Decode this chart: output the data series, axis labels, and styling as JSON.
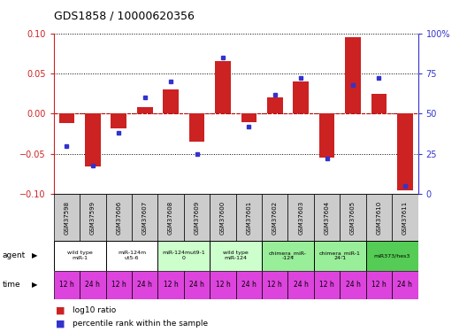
{
  "title": "GDS1858 / 10000620356",
  "samples": [
    "GSM37598",
    "GSM37599",
    "GSM37606",
    "GSM37607",
    "GSM37608",
    "GSM37609",
    "GSM37600",
    "GSM37601",
    "GSM37602",
    "GSM37603",
    "GSM37604",
    "GSM37605",
    "GSM37610",
    "GSM37611"
  ],
  "log10_ratio": [
    -0.012,
    -0.065,
    -0.018,
    0.008,
    0.03,
    -0.035,
    0.065,
    -0.01,
    0.02,
    0.04,
    -0.055,
    0.095,
    0.025,
    -0.095
  ],
  "percentile_rank": [
    30,
    18,
    38,
    60,
    70,
    25,
    85,
    42,
    62,
    72,
    22,
    68,
    72,
    5
  ],
  "ylim_left": [
    -0.1,
    0.1
  ],
  "ylim_right": [
    0,
    100
  ],
  "yticks_left": [
    -0.1,
    -0.05,
    0.0,
    0.05,
    0.1
  ],
  "yticks_right": [
    0,
    25,
    50,
    75,
    100
  ],
  "ytick_labels_right": [
    "0",
    "25",
    "50",
    "75",
    "100%"
  ],
  "bar_color": "#cc2222",
  "dot_color": "#3333cc",
  "agent_groups": [
    {
      "label": "wild type\nmiR-1",
      "start": 0,
      "end": 2,
      "color": "#ffffff"
    },
    {
      "label": "miR-124m\nut5-6",
      "start": 2,
      "end": 4,
      "color": "#ffffff"
    },
    {
      "label": "miR-124mut9-1\n0",
      "start": 4,
      "end": 6,
      "color": "#ccffcc"
    },
    {
      "label": "wild type\nmiR-124",
      "start": 6,
      "end": 8,
      "color": "#ccffcc"
    },
    {
      "label": "chimera_miR-\n-124",
      "start": 8,
      "end": 10,
      "color": "#99ee99"
    },
    {
      "label": "chimera_miR-1\n24-1",
      "start": 10,
      "end": 12,
      "color": "#99ee99"
    },
    {
      "label": "miR373/hes3",
      "start": 12,
      "end": 14,
      "color": "#55cc55"
    }
  ],
  "time_labels": [
    "12 h",
    "24 h",
    "12 h",
    "24 h",
    "12 h",
    "24 h",
    "12 h",
    "24 h",
    "12 h",
    "24 h",
    "12 h",
    "24 h",
    "12 h",
    "24 h"
  ],
  "time_color": "#dd44dd",
  "background_color": "#ffffff",
  "zero_line_color": "#cc0000",
  "sample_box_color": "#cccccc"
}
